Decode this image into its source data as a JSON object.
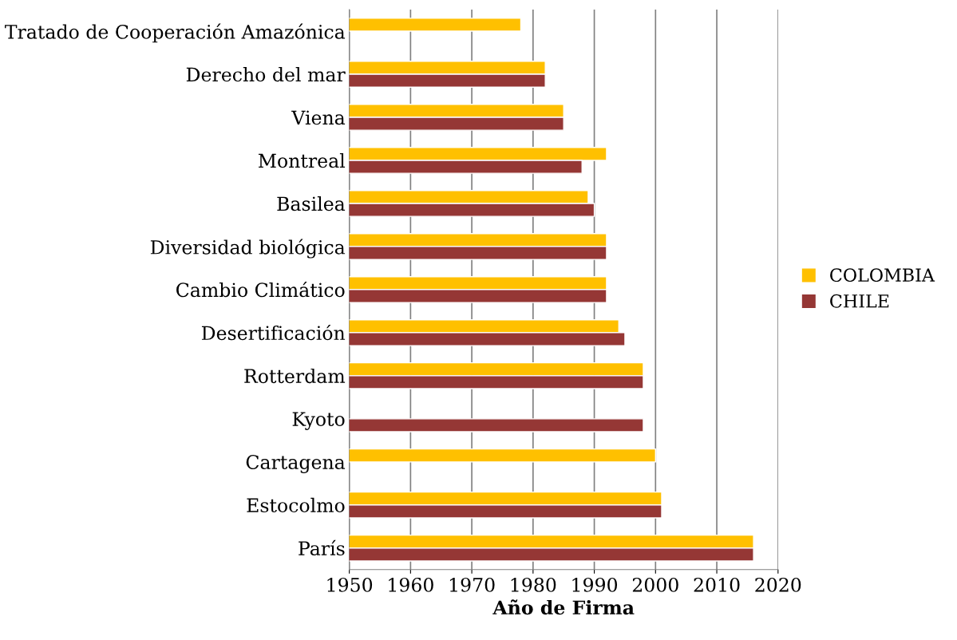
{
  "chart_data": {
    "type": "bar",
    "orientation": "horizontal",
    "xlabel": "Año de Firma",
    "categories": [
      "Tratado de Cooperación Amazónica",
      "Derecho del mar",
      "Viena",
      "Montreal",
      "Basilea",
      "Diversidad biológica",
      "Cambio Climático",
      "Desertificación",
      "Rotterdam",
      "Kyoto",
      "Cartagena",
      "Estocolmo",
      "París"
    ],
    "series": [
      {
        "name": "COLOMBIA",
        "color": "#ffc000",
        "values": [
          1978,
          1982,
          1985,
          1992,
          1989,
          1992,
          1992,
          1994,
          1998,
          null,
          2000,
          2001,
          2016
        ]
      },
      {
        "name": "CHILE",
        "color": "#953735",
        "values": [
          null,
          1982,
          1985,
          1988,
          1990,
          1992,
          1992,
          1995,
          1998,
          1998,
          null,
          2001,
          2016
        ]
      }
    ],
    "xlim": [
      1950,
      2020
    ],
    "xticks": [
      1950,
      1960,
      1970,
      1980,
      1990,
      2000,
      2010,
      2020
    ],
    "grid": "x",
    "legend": "right"
  }
}
